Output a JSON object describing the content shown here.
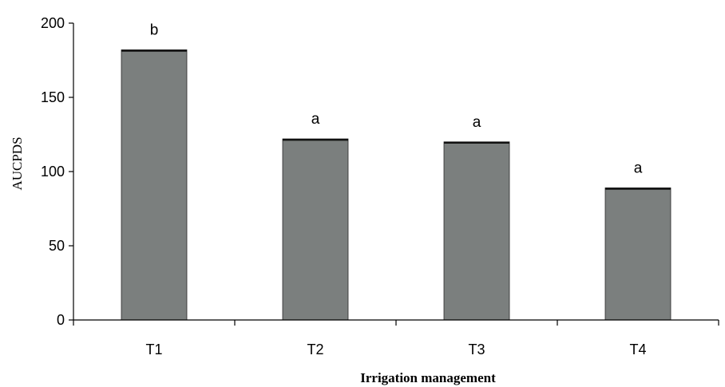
{
  "chart_data": {
    "type": "bar",
    "categories": [
      "T1",
      "T2",
      "T3",
      "T4"
    ],
    "values": [
      182,
      122,
      120,
      89
    ],
    "bar_labels": [
      "b",
      "a",
      "a",
      "a"
    ],
    "title": "",
    "xlabel": "Irrigation management",
    "ylabel": "AUCPDS",
    "ylim": [
      0,
      200
    ],
    "yticks": [
      0,
      50,
      100,
      150,
      200
    ],
    "grid": false,
    "legend": "none",
    "colors": {
      "bar_fill": "#7b7f7e",
      "bar_top": "#111111",
      "axis": "#000000"
    }
  }
}
